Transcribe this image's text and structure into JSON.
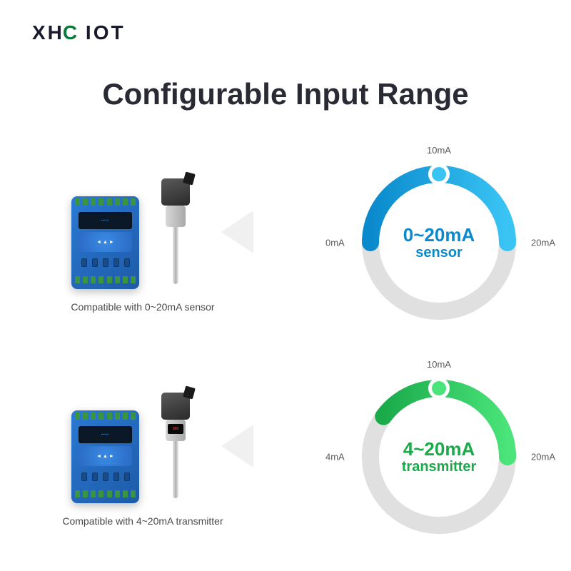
{
  "brand": {
    "prefix": "XH",
    "mid": "C",
    "suffix": " IOT"
  },
  "title": "Configurable Input Range",
  "rows": [
    {
      "caption": "Compatible with 0~20mA sensor",
      "has_display": false,
      "ring": {
        "range_text": "0~20mA",
        "type_text": "sensor",
        "color_class": "blue-text",
        "arc_color_start": "#0a8acc",
        "arc_color_end": "#3ac4f4",
        "arc_start_angle": 270,
        "arc_sweep": 180,
        "base_color": "#e0e0e0",
        "labels": {
          "top": "10mA",
          "left": "0mA",
          "right": "20mA"
        }
      }
    },
    {
      "caption": "Compatible with 4~20mA transmitter",
      "has_display": true,
      "ring": {
        "range_text": "4~20mA",
        "type_text": "transmitter",
        "color_class": "green-text",
        "arc_color_start": "#1aaa4a",
        "arc_color_end": "#4ae47a",
        "arc_start_angle": 306,
        "arc_sweep": 144,
        "base_color": "#e0e0e0",
        "labels": {
          "top": "10mA",
          "left": "4mA",
          "right": "20mA"
        }
      }
    }
  ],
  "style": {
    "ring_outer_r": 108,
    "ring_inner_r": 84,
    "stroke_width": 24,
    "canvas": 230
  }
}
